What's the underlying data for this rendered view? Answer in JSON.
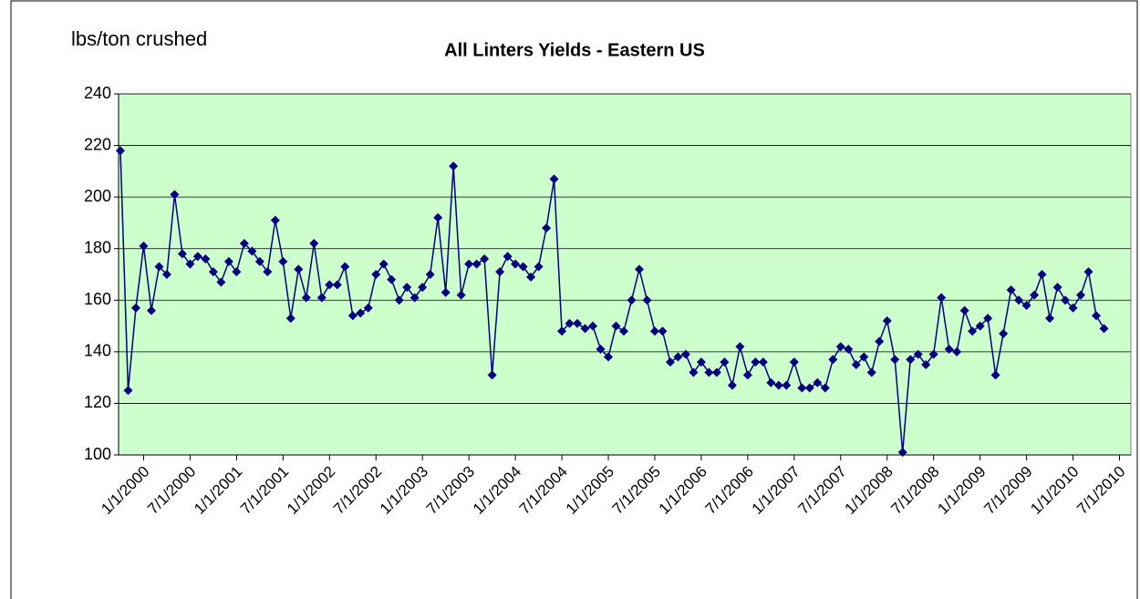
{
  "chart_data": {
    "type": "line",
    "title": "All Linters Yields - Eastern US",
    "y_label": "lbs/ton crushed",
    "categories": [
      null,
      null,
      null,
      "1/1/2000",
      null,
      null,
      null,
      null,
      null,
      "7/1/2000",
      null,
      null,
      null,
      null,
      null,
      "1/1/2001",
      null,
      null,
      null,
      null,
      null,
      "7/1/2001",
      null,
      null,
      null,
      null,
      null,
      "1/1/2002",
      null,
      null,
      null,
      null,
      null,
      "7/1/2002",
      null,
      null,
      null,
      null,
      null,
      "1/1/2003",
      null,
      null,
      null,
      null,
      null,
      "7/1/2003",
      null,
      null,
      null,
      null,
      null,
      "1/1/2004",
      null,
      null,
      null,
      null,
      null,
      "7/1/2004",
      null,
      null,
      null,
      null,
      null,
      "1/1/2005",
      null,
      null,
      null,
      null,
      null,
      "7/1/2005",
      null,
      null,
      null,
      null,
      null,
      "1/1/2006",
      null,
      null,
      null,
      null,
      null,
      "7/1/2006",
      null,
      null,
      null,
      null,
      null,
      "1/1/2007",
      null,
      null,
      null,
      null,
      null,
      "7/1/2007",
      null,
      null,
      null,
      null,
      null,
      "1/1/2008",
      null,
      null,
      null,
      null,
      null,
      "7/1/2008",
      null,
      null,
      null,
      null,
      null,
      "1/1/2009",
      null,
      null,
      null,
      null,
      null,
      "7/1/2009",
      null,
      null,
      null,
      null,
      null,
      "1/1/2010",
      null,
      null,
      null,
      null,
      null,
      "7/1/2010",
      null
    ],
    "series": [
      {
        "name": "All Linters Yields",
        "color": "#000080",
        "values": [
          218,
          125,
          157,
          181,
          156,
          173,
          170,
          201,
          178,
          174,
          177,
          176,
          171,
          167,
          175,
          171,
          182,
          179,
          175,
          171,
          191,
          175,
          153,
          172,
          161,
          182,
          161,
          166,
          166,
          173,
          154,
          155,
          157,
          170,
          174,
          168,
          160,
          165,
          161,
          165,
          170,
          192,
          163,
          212,
          162,
          174,
          174,
          176,
          131,
          171,
          177,
          174,
          173,
          169,
          173,
          188,
          207,
          148,
          151,
          151,
          149,
          150,
          141,
          138,
          150,
          148,
          160,
          172,
          160,
          148,
          148,
          136,
          138,
          139,
          132,
          136,
          132,
          132,
          136,
          127,
          142,
          131,
          136,
          136,
          128,
          127,
          127,
          136,
          126,
          126,
          128,
          126,
          137,
          142,
          141,
          135,
          138,
          132,
          144,
          152,
          137,
          101,
          137,
          139,
          135,
          139,
          161,
          141,
          140,
          156,
          148,
          150,
          153,
          131,
          147,
          164,
          160,
          158,
          162,
          170,
          153,
          165,
          160,
          157,
          162,
          171,
          154,
          149,
          null,
          null,
          null
        ]
      }
    ],
    "ylim": [
      100,
      240
    ],
    "yticks": [
      100,
      120,
      140,
      160,
      180,
      200,
      220,
      240
    ],
    "grid": true,
    "background": "#ccffcc"
  }
}
